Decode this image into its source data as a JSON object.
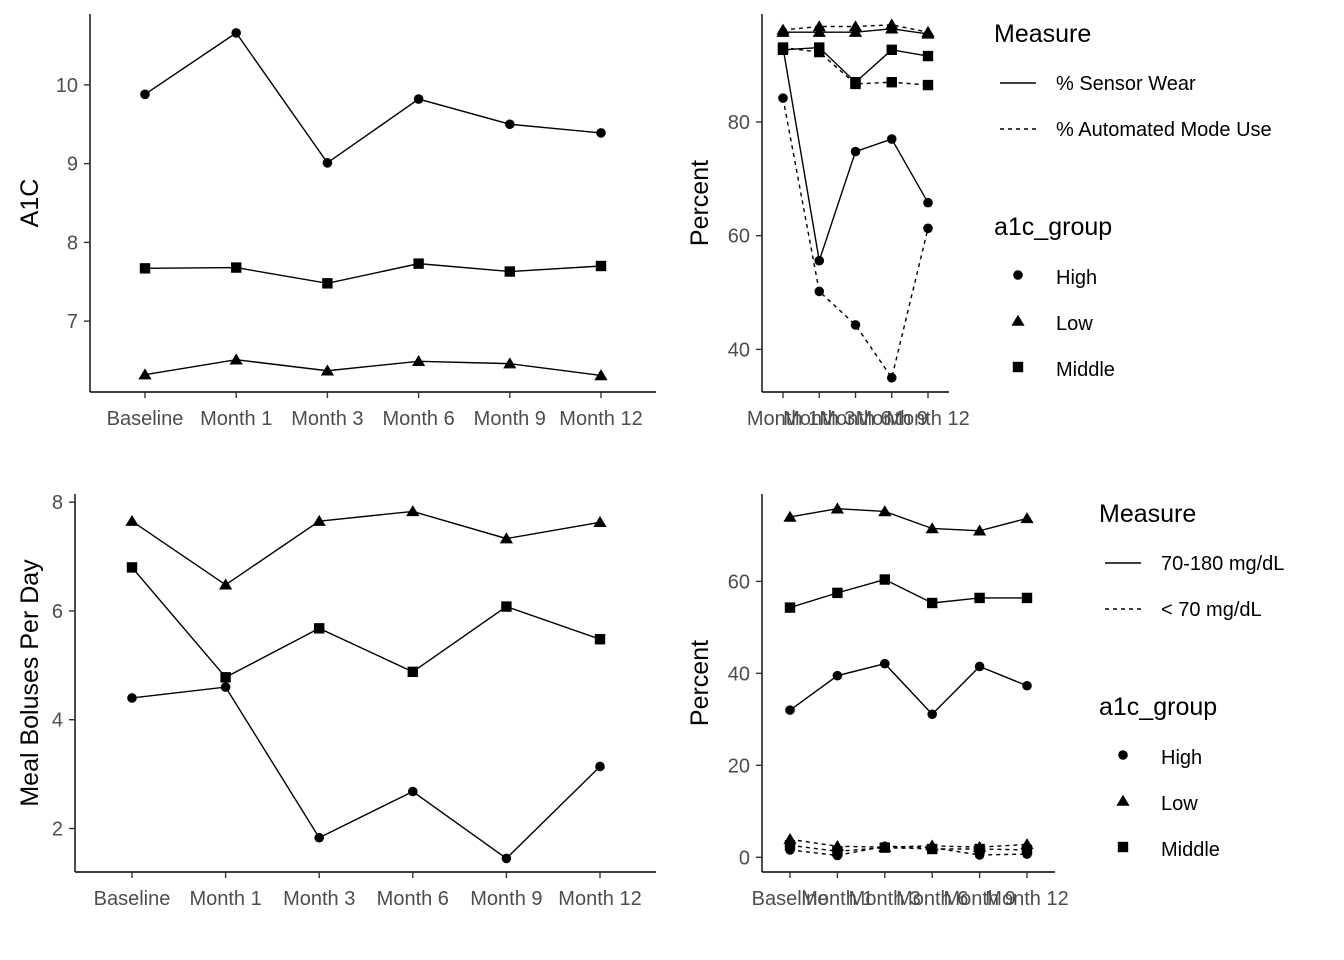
{
  "chart_data": [
    {
      "type": "line",
      "panel": "top-left",
      "xlabel": "",
      "ylabel": "A1C",
      "categories": [
        "Baseline",
        "Month 1",
        "Month 3",
        "Month 6",
        "Month 9",
        "Month 12"
      ],
      "yticks": [
        7,
        8,
        9,
        10
      ],
      "ylim": [
        6.1,
        10.9
      ],
      "series": [
        {
          "name": "High",
          "shape": "circle",
          "linetype": "solid",
          "values": [
            9.88,
            10.66,
            9.01,
            9.82,
            9.5,
            9.39
          ]
        },
        {
          "name": "Middle",
          "shape": "square",
          "linetype": "solid",
          "values": [
            7.67,
            7.68,
            7.48,
            7.73,
            7.63,
            7.7
          ]
        },
        {
          "name": "Low",
          "shape": "triangle",
          "linetype": "solid",
          "values": [
            6.32,
            6.51,
            6.37,
            6.49,
            6.46,
            6.31
          ]
        }
      ]
    },
    {
      "type": "line",
      "panel": "top-right",
      "xlabel": "",
      "ylabel": "Percent",
      "categories": [
        "Month 1",
        "Month 3",
        "Month 6",
        "Month 9",
        "Month 12"
      ],
      "yticks": [
        40,
        60,
        80
      ],
      "ylim": [
        32.5,
        99
      ],
      "series": [
        {
          "name": "Low",
          "measure": "% Sensor Wear",
          "shape": "triangle",
          "linetype": "solid",
          "values": [
            95.8,
            95.8,
            95.8,
            96.4,
            95.5
          ]
        },
        {
          "name": "Low",
          "measure": "% Automated Mode Use",
          "shape": "triangle",
          "linetype": "dashed",
          "values": [
            96.2,
            96.8,
            96.8,
            97.1,
            95.8
          ]
        },
        {
          "name": "Middle",
          "measure": "% Sensor Wear",
          "shape": "square",
          "linetype": "solid",
          "values": [
            92.7,
            93.1,
            87.0,
            92.7,
            91.6
          ]
        },
        {
          "name": "Middle",
          "measure": "% Automated Mode Use",
          "shape": "square",
          "linetype": "dashed",
          "values": [
            93.1,
            92.3,
            86.7,
            87.0,
            86.5
          ]
        },
        {
          "name": "High",
          "measure": "% Sensor Wear",
          "shape": "circle",
          "linetype": "solid",
          "values": [
            93.1,
            55.6,
            74.8,
            77.0,
            65.8
          ]
        },
        {
          "name": "High",
          "measure": "% Automated Mode Use",
          "shape": "circle",
          "linetype": "dashed",
          "values": [
            84.2,
            50.2,
            44.3,
            35.0,
            61.3
          ]
        }
      ],
      "legend": {
        "placement": "right",
        "measure_title": "Measure",
        "measures": [
          "% Sensor Wear",
          "% Automated Mode Use"
        ],
        "group_title": "a1c_group",
        "groups": [
          "High",
          "Low",
          "Middle"
        ]
      }
    },
    {
      "type": "line",
      "panel": "bottom-left",
      "xlabel": "",
      "ylabel": "Meal Boluses Per Day",
      "categories": [
        "Baseline",
        "Month 1",
        "Month 3",
        "Month 6",
        "Month 9",
        "Month 12"
      ],
      "yticks": [
        2,
        4,
        6,
        8
      ],
      "ylim": [
        1.2,
        8.15
      ],
      "series": [
        {
          "name": "High",
          "shape": "circle",
          "linetype": "solid",
          "values": [
            4.4,
            4.6,
            1.83,
            2.68,
            1.45,
            3.14
          ]
        },
        {
          "name": "Middle",
          "shape": "square",
          "linetype": "solid",
          "values": [
            6.8,
            4.78,
            5.68,
            4.88,
            6.08,
            5.48
          ]
        },
        {
          "name": "Low",
          "shape": "triangle",
          "linetype": "solid",
          "values": [
            7.65,
            6.48,
            7.65,
            7.83,
            7.33,
            7.63
          ]
        }
      ]
    },
    {
      "type": "line",
      "panel": "bottom-right",
      "xlabel": "",
      "ylabel": "Percent",
      "categories": [
        "Baseline",
        "Month 1",
        "Month 3",
        "Month 6",
        "Month 9",
        "Month 12"
      ],
      "yticks": [
        0,
        20,
        40,
        60
      ],
      "ylim": [
        -3.2,
        79
      ],
      "series": [
        {
          "name": "Low",
          "measure": "70-180 mg/dL",
          "shape": "triangle",
          "linetype": "solid",
          "values": [
            74.0,
            75.8,
            75.2,
            71.5,
            71.0,
            73.7
          ]
        },
        {
          "name": "Middle",
          "measure": "70-180 mg/dL",
          "shape": "square",
          "linetype": "solid",
          "values": [
            54.3,
            57.5,
            60.4,
            55.3,
            56.4,
            56.4
          ]
        },
        {
          "name": "High",
          "measure": "70-180 mg/dL",
          "shape": "circle",
          "linetype": "solid",
          "values": [
            32.0,
            39.5,
            42.1,
            31.1,
            41.5,
            37.3
          ]
        },
        {
          "name": "Low",
          "measure": "< 70 mg/dL",
          "shape": "triangle",
          "linetype": "dashed",
          "values": [
            3.9,
            2.4,
            2.2,
            2.5,
            2.2,
            2.8
          ]
        },
        {
          "name": "Middle",
          "measure": "< 70 mg/dL",
          "shape": "square",
          "linetype": "dashed",
          "values": [
            2.6,
            1.3,
            2.1,
            1.8,
            1.8,
            1.6
          ]
        },
        {
          "name": "High",
          "measure": "< 70 mg/dL",
          "shape": "circle",
          "linetype": "dashed",
          "values": [
            1.6,
            0.4,
            2.4,
            2.1,
            0.5,
            0.7
          ]
        }
      ],
      "legend": {
        "placement": "right",
        "measure_title": "Measure",
        "measures": [
          "70-180 mg/dL",
          "< 70 mg/dL"
        ],
        "group_title": "a1c_group",
        "groups": [
          "High",
          "Low",
          "Middle"
        ]
      }
    }
  ]
}
